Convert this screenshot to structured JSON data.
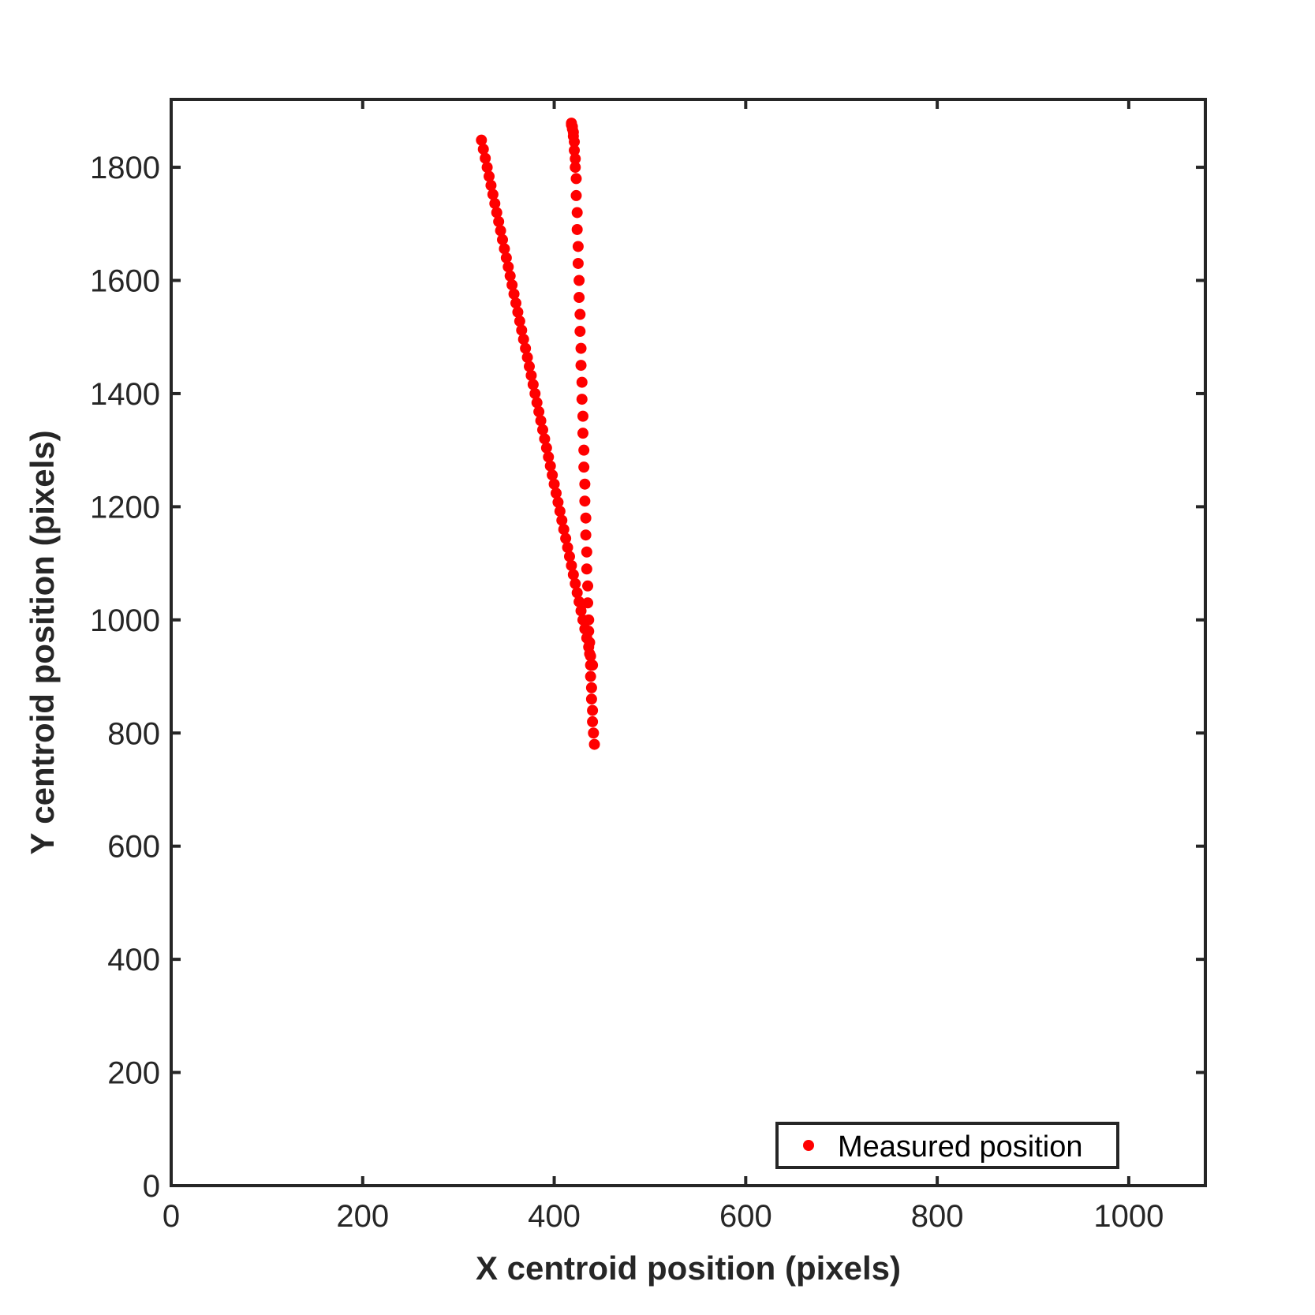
{
  "chart_data": {
    "type": "scatter",
    "xlabel": "X centroid position (pixels)",
    "ylabel": "Y centroid position (pixels)",
    "xlim": [
      0,
      1080
    ],
    "ylim": [
      0,
      1920
    ],
    "xticks": [
      0,
      200,
      400,
      600,
      800,
      1000
    ],
    "yticks": [
      0,
      200,
      400,
      600,
      800,
      1000,
      1200,
      1400,
      1600,
      1800
    ],
    "xtick_labels": [
      "0",
      "200",
      "400",
      "600",
      "800",
      "1000"
    ],
    "ytick_labels": [
      "0",
      "200",
      "400",
      "600",
      "800",
      "1000",
      "1200",
      "1400",
      "1600",
      "1800"
    ],
    "grid": false,
    "legend_position": "bottom-right",
    "series": [
      {
        "name": "Measured position",
        "color": "#ff0000",
        "marker": "filled-circle",
        "x": [
          324,
          326,
          328,
          330,
          332,
          334,
          336,
          338,
          340,
          342,
          344,
          346,
          348,
          350,
          352,
          354,
          356,
          358,
          360,
          362,
          364,
          366,
          368,
          370,
          372,
          374,
          376,
          378,
          380,
          382,
          384,
          386,
          388,
          390,
          392,
          394,
          396,
          398,
          400,
          402,
          404,
          406,
          408,
          410,
          412,
          414,
          416,
          418,
          420,
          422,
          424,
          426,
          428,
          430,
          432,
          434,
          436,
          438,
          440,
          442,
          441,
          440,
          440,
          439,
          439,
          438,
          438,
          437,
          437,
          436,
          436,
          435,
          435,
          434,
          434,
          433,
          433,
          432,
          432,
          431,
          431,
          430,
          430,
          429,
          429,
          428,
          428,
          427,
          427,
          426,
          426,
          425,
          425,
          424,
          424,
          423,
          423,
          422,
          422,
          421,
          421,
          420,
          420,
          419,
          419,
          418,
          418
        ],
        "y": [
          1848,
          1832,
          1816,
          1800,
          1784,
          1768,
          1752,
          1736,
          1720,
          1704,
          1688,
          1672,
          1656,
          1640,
          1624,
          1608,
          1592,
          1576,
          1560,
          1544,
          1528,
          1512,
          1496,
          1480,
          1464,
          1448,
          1432,
          1416,
          1400,
          1384,
          1368,
          1352,
          1336,
          1320,
          1304,
          1288,
          1272,
          1256,
          1240,
          1224,
          1208,
          1192,
          1176,
          1160,
          1144,
          1128,
          1112,
          1096,
          1080,
          1064,
          1048,
          1032,
          1016,
          1000,
          984,
          968,
          952,
          936,
          920,
          780,
          800,
          820,
          840,
          860,
          880,
          900,
          920,
          940,
          960,
          980,
          1000,
          1030,
          1060,
          1090,
          1120,
          1150,
          1180,
          1210,
          1240,
          1270,
          1300,
          1330,
          1360,
          1390,
          1420,
          1450,
          1480,
          1510,
          1540,
          1570,
          1600,
          1630,
          1660,
          1690,
          1720,
          1750,
          1780,
          1800,
          1815,
          1830,
          1845,
          1855,
          1862,
          1868,
          1872,
          1875,
          1878
        ]
      }
    ]
  }
}
